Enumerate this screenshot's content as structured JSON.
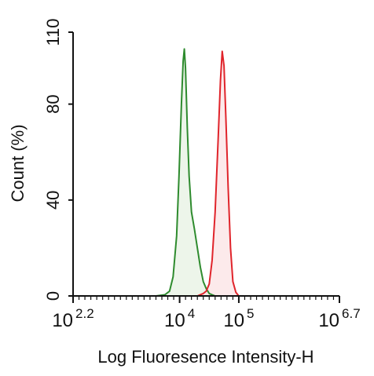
{
  "chart_data": {
    "type": "area",
    "title": "",
    "xlabel": "Log Fluoresence Intensity-H",
    "ylabel": "Count  (%)",
    "x_scale": "log10",
    "xlim": [
      158.49,
      5011872
    ],
    "ylim": [
      0,
      110
    ],
    "grid": false,
    "legend": "none",
    "y_ticks": [
      "0",
      "40",
      "80",
      "110"
    ],
    "y_tick_values": [
      0,
      40,
      80,
      110
    ],
    "x_ticks": [
      {
        "base": "10",
        "exp": "2.2",
        "value": 158.49
      },
      {
        "base": "10",
        "exp": "4",
        "value": 10000
      },
      {
        "base": "10",
        "exp": "5",
        "value": 100000
      },
      {
        "base": "10",
        "exp": "6.7",
        "value": 5011872
      }
    ],
    "series": [
      {
        "color": "#2e8b2e",
        "fill": "#e7f1e3",
        "points": [
          {
            "x": 3981,
            "y": 0
          },
          {
            "x": 5623,
            "y": 0.5
          },
          {
            "x": 6761,
            "y": 2
          },
          {
            "x": 7762,
            "y": 8
          },
          {
            "x": 8913,
            "y": 25
          },
          {
            "x": 9772,
            "y": 50
          },
          {
            "x": 10715,
            "y": 80
          },
          {
            "x": 11482,
            "y": 98
          },
          {
            "x": 12023,
            "y": 103
          },
          {
            "x": 12589,
            "y": 95
          },
          {
            "x": 13490,
            "y": 70
          },
          {
            "x": 14454,
            "y": 50
          },
          {
            "x": 15849,
            "y": 35
          },
          {
            "x": 17783,
            "y": 28
          },
          {
            "x": 19953,
            "y": 20
          },
          {
            "x": 22387,
            "y": 12
          },
          {
            "x": 25119,
            "y": 6
          },
          {
            "x": 28184,
            "y": 3
          },
          {
            "x": 31623,
            "y": 1
          },
          {
            "x": 35481,
            "y": 0.5
          },
          {
            "x": 39811,
            "y": 0
          }
        ]
      },
      {
        "color": "#e0242b",
        "fill": "#fbe3e4",
        "points": [
          {
            "x": 19953,
            "y": 0
          },
          {
            "x": 25119,
            "y": 1
          },
          {
            "x": 28184,
            "y": 2
          },
          {
            "x": 31623,
            "y": 5
          },
          {
            "x": 35481,
            "y": 15
          },
          {
            "x": 39811,
            "y": 35
          },
          {
            "x": 44668,
            "y": 65
          },
          {
            "x": 48978,
            "y": 90
          },
          {
            "x": 52481,
            "y": 102
          },
          {
            "x": 56234,
            "y": 96
          },
          {
            "x": 60256,
            "y": 75
          },
          {
            "x": 66069,
            "y": 45
          },
          {
            "x": 72444,
            "y": 20
          },
          {
            "x": 79433,
            "y": 6
          },
          {
            "x": 89125,
            "y": 1.5
          },
          {
            "x": 100000,
            "y": 0
          }
        ]
      }
    ]
  }
}
